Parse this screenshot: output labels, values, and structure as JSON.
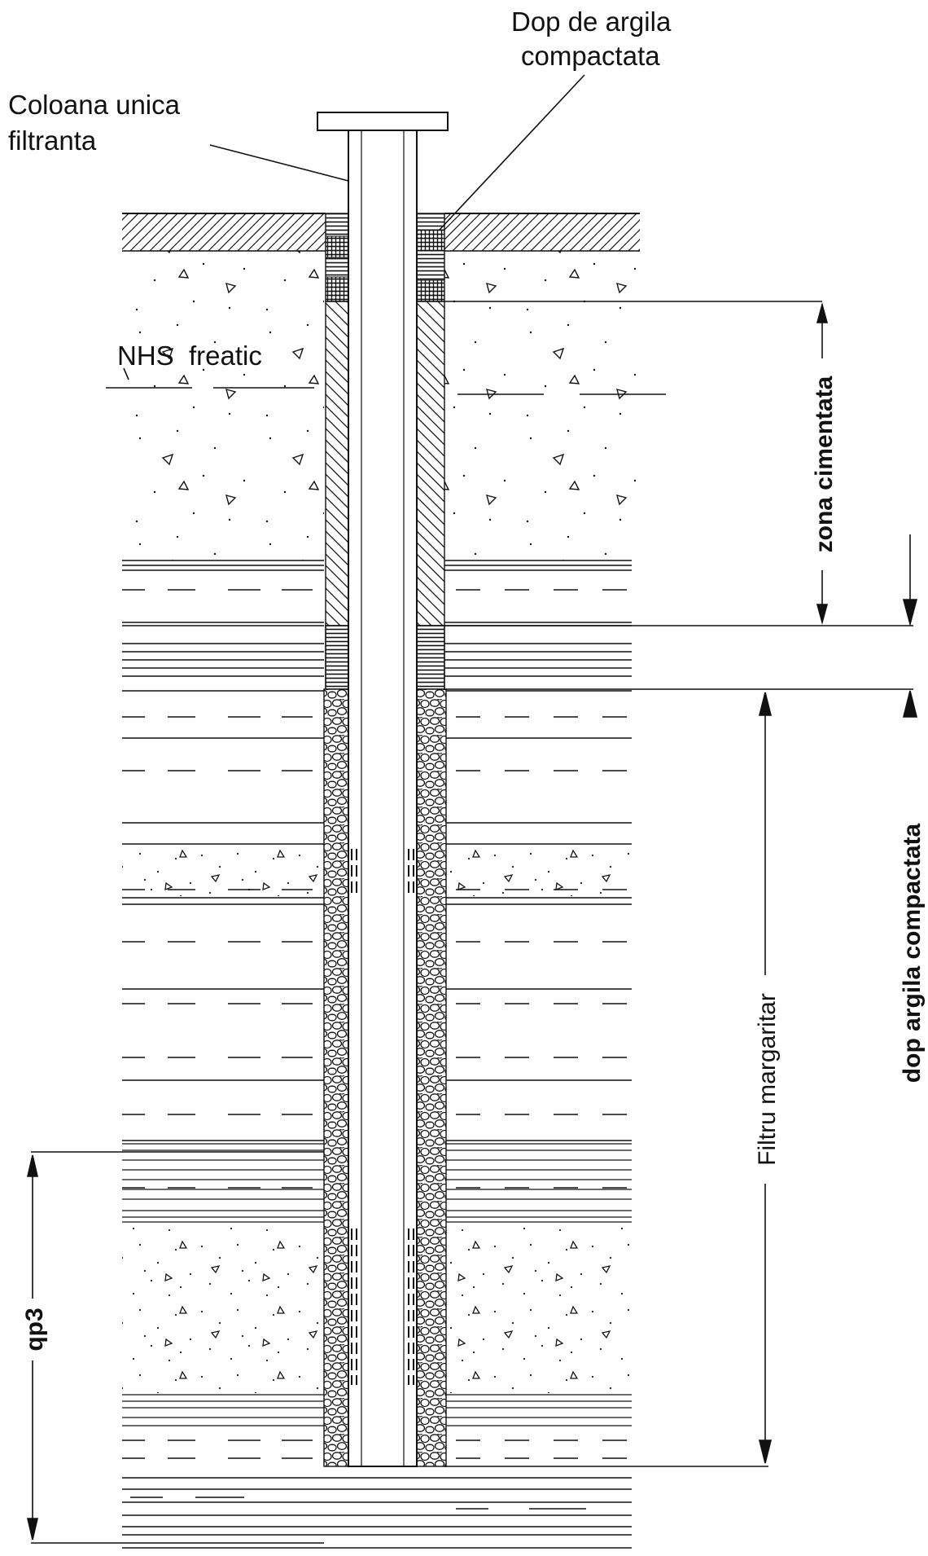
{
  "labels": {
    "top_plug": [
      "Dop de argila",
      "compactata"
    ],
    "casing": [
      "Coloana unica",
      "filtranta"
    ],
    "water_table": "NHS  freatic",
    "cemented_zone": "zona cimentata",
    "clay_plug": "dop argila compactata",
    "gravel_filter": "Filtru margaritar",
    "aquifer": "qp3"
  },
  "colors": {
    "ink": "#111111",
    "background": "#ffffff"
  }
}
